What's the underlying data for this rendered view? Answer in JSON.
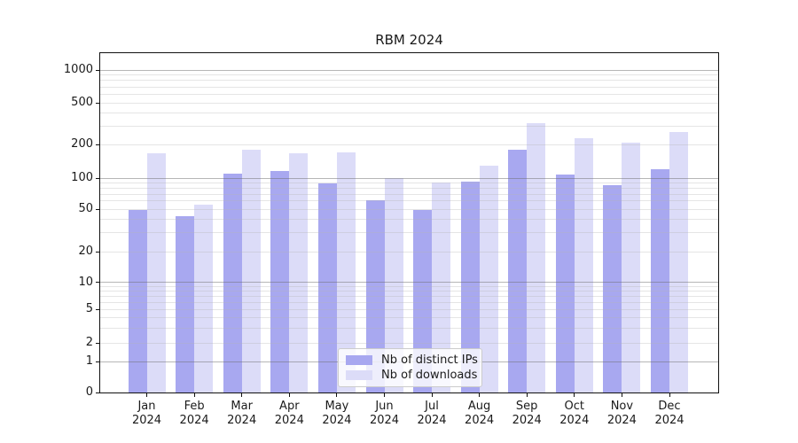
{
  "chart_data": {
    "type": "bar",
    "title": "RBM 2024",
    "categories": [
      "Jan 2024",
      "Feb 2024",
      "Mar 2024",
      "Apr 2024",
      "May 2024",
      "Jun 2024",
      "Jul 2024",
      "Aug 2024",
      "Sep 2024",
      "Oct 2024",
      "Nov 2024",
      "Dec 2024"
    ],
    "series": [
      {
        "name": "Nb of distinct IPs",
        "color": "#a8a8f0",
        "values": [
          49,
          43,
          110,
          115,
          89,
          61,
          49,
          92,
          180,
          107,
          85,
          120
        ]
      },
      {
        "name": "Nb of downloads",
        "color": "#dcdcf8",
        "values": [
          168,
          55,
          178,
          168,
          170,
          100,
          90,
          130,
          320,
          230,
          208,
          264
        ]
      }
    ],
    "yscale": "log-like",
    "yticks": [
      0,
      1,
      2,
      5,
      10,
      20,
      50,
      100,
      200,
      500,
      1000
    ],
    "minor_gridlines": [
      2,
      3,
      4,
      5,
      6,
      7,
      8,
      9,
      20,
      30,
      40,
      50,
      60,
      70,
      80,
      90,
      200,
      300,
      400,
      500,
      600,
      700,
      800,
      900
    ],
    "major_gridlines": [
      1,
      10,
      100,
      1000
    ],
    "ylim": [
      0,
      1440
    ],
    "grid": true,
    "xlabel": "",
    "ylabel": "",
    "legend_position": "lower center"
  },
  "colors": {
    "major_grid": "#b3b3b3",
    "minor_grid": "#e6e6e6",
    "axis": "#111111",
    "text": "#1a1a1a",
    "legend_border": "#cccccc",
    "legend_bg": "rgba(255,255,255,0.8)"
  }
}
